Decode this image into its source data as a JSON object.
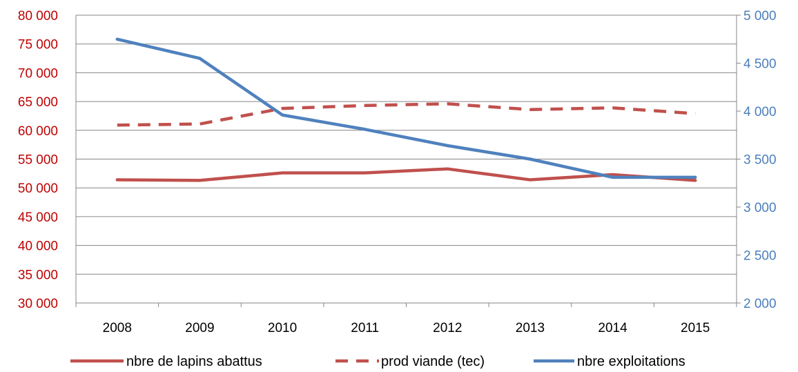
{
  "chart_data": {
    "type": "line",
    "categories": [
      "2008",
      "2009",
      "2010",
      "2011",
      "2012",
      "2013",
      "2014",
      "2015"
    ],
    "y_left": {
      "ylim": [
        30000,
        80000
      ],
      "ticks": [
        "30 000",
        "35 000",
        "40 000",
        "45 000",
        "50 000",
        "55 000",
        "60 000",
        "65 000",
        "70 000",
        "75 000",
        "80 000"
      ],
      "color": "#c00000"
    },
    "y_right": {
      "ylim": [
        2000,
        5000
      ],
      "ticks": [
        "2 000",
        "2 500",
        "3 000",
        "3 500",
        "4 000",
        "4 500",
        "5 000"
      ],
      "color": "#4a7ebb"
    },
    "grid": true,
    "legend_position": "bottom",
    "series": [
      {
        "name": "nbre de lapins abattus",
        "axis": "left",
        "style": "solid",
        "color": "#c0504d",
        "values": [
          51400,
          51300,
          52600,
          52600,
          53300,
          51400,
          52300,
          51300
        ]
      },
      {
        "name": "prod viande (tec)",
        "axis": "left",
        "style": "dashed",
        "color": "#c0504d",
        "values": [
          60900,
          61100,
          63800,
          64300,
          64600,
          63600,
          63900,
          62900
        ]
      },
      {
        "name": "nbre exploitations",
        "axis": "right",
        "style": "solid",
        "color": "#4f81bd",
        "values": [
          4750,
          4550,
          3960,
          3810,
          3640,
          3500,
          3310,
          3310
        ]
      }
    ]
  }
}
